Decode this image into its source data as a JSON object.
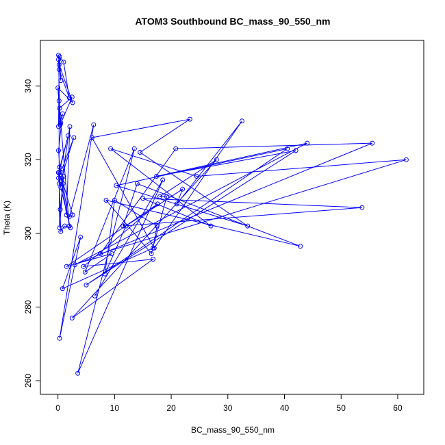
{
  "chart_data": {
    "type": "line",
    "title": "ATOM3 Southbound BC_mass_90_550_nm",
    "xlabel": "BC_mass_90_550_nm",
    "ylabel": "Theta (K)",
    "xlim": [
      -3.1,
      64.6
    ],
    "ylim": [
      256.3,
      352.4
    ],
    "xticks": [
      0,
      10,
      20,
      30,
      40,
      50,
      60
    ],
    "yticks": [
      260,
      280,
      300,
      320,
      340
    ],
    "grid": false,
    "legend": "none",
    "marker": "open-circle",
    "color": "#0000ff",
    "x": [
      0.1,
      0.5,
      0.3,
      1.0,
      2.0,
      0.2,
      0.1,
      0.3,
      2.5,
      0.4,
      0.0,
      2.6,
      0.2,
      0.1,
      0.8,
      0.1,
      0.3,
      0.6,
      2.0,
      0.5,
      0.2,
      0.2,
      1.8,
      0.1,
      0.4,
      1.0,
      0.3,
      0.2,
      0.5,
      1.2,
      2.2,
      0.1,
      2.8,
      0.6,
      1.5,
      2.1,
      0.5,
      0.1,
      0.9,
      2.6,
      2.0,
      6.3,
      0.3,
      4.0,
      0.8,
      16.8,
      17.5,
      10.0,
      8.3,
      12.0,
      22.0,
      21.0,
      32.5,
      17.0,
      6.0,
      23.3,
      14.5,
      33.5,
      10.3,
      40.5,
      5.0,
      42.0,
      17.4,
      44.0,
      3.0,
      55.5,
      20.8,
      7.5,
      61.5,
      24.5,
      9.3,
      27.0,
      15.0,
      53.7,
      11.5,
      14.0,
      42.8,
      8.5,
      16.5,
      19.2,
      18.0,
      28.0,
      2.5,
      16.8,
      4.5,
      17.6,
      1.5,
      9.5,
      4.8,
      13.5,
      3.5,
      18.5,
      6.5
    ],
    "y": [
      348.4,
      341.5,
      348.0,
      346.5,
      336.8,
      344.5,
      347.2,
      334.0,
      337.0,
      329.5,
      339.5,
      335.5,
      345.8,
      329.0,
      332.5,
      322.5,
      318.0,
      316.5,
      302.0,
      330.0,
      336.0,
      316.5,
      326.5,
      316.5,
      306.5,
      315.5,
      301.5,
      313.5,
      300.5,
      302.0,
      301.5,
      315.0,
      326.0,
      315.0,
      305.0,
      329.0,
      312.5,
      316.5,
      313.5,
      305.0,
      304.5,
      329.5,
      271.5,
      299.0,
      285.0,
      296.0,
      302.0,
      309.0,
      289.0,
      302.0,
      312.0,
      308.0,
      330.5,
      296.0,
      326.0,
      331.0,
      322.0,
      302.0,
      313.0,
      323.0,
      286.0,
      322.5,
      315.5,
      324.5,
      291.5,
      324.5,
      323.0,
      294.5,
      320.0,
      315.5,
      323.0,
      302.0,
      309.5,
      307.0,
      302.0,
      313.5,
      296.5,
      309.0,
      294.5,
      310.0,
      310.0,
      320.0,
      277.0,
      293.0,
      291.0,
      308.0,
      291.0,
      294.5,
      289.5,
      323.0,
      262.0,
      314.5,
      283.0
    ]
  }
}
